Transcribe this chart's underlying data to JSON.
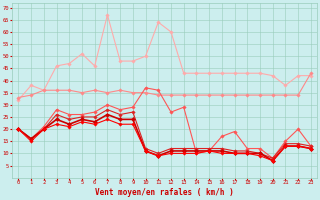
{
  "x": [
    0,
    1,
    2,
    3,
    4,
    5,
    6,
    7,
    8,
    9,
    10,
    11,
    12,
    13,
    14,
    15,
    16,
    17,
    18,
    19,
    20,
    21,
    22,
    23
  ],
  "series": [
    {
      "color": "#ffaaaa",
      "linewidth": 0.8,
      "marker": "D",
      "markersize": 1.8,
      "values": [
        32,
        38,
        36,
        46,
        47,
        51,
        46,
        67,
        48,
        48,
        50,
        64,
        60,
        43,
        43,
        43,
        43,
        43,
        43,
        43,
        42,
        38,
        42,
        42
      ]
    },
    {
      "color": "#ff8888",
      "linewidth": 0.8,
      "marker": "D",
      "markersize": 1.8,
      "values": [
        33,
        34,
        36,
        36,
        36,
        35,
        36,
        35,
        36,
        35,
        35,
        34,
        34,
        34,
        34,
        34,
        34,
        34,
        34,
        34,
        34,
        34,
        34,
        43
      ]
    },
    {
      "color": "#ff5555",
      "linewidth": 0.8,
      "marker": "D",
      "markersize": 1.8,
      "values": [
        20,
        16,
        21,
        28,
        26,
        26,
        27,
        30,
        28,
        29,
        37,
        36,
        27,
        29,
        10,
        11,
        17,
        19,
        12,
        12,
        8,
        15,
        20,
        13
      ]
    },
    {
      "color": "#dd2222",
      "linewidth": 0.8,
      "marker": "D",
      "markersize": 1.8,
      "values": [
        20,
        16,
        20,
        26,
        24,
        25,
        25,
        28,
        26,
        27,
        12,
        10,
        12,
        12,
        12,
        12,
        12,
        11,
        11,
        10,
        8,
        14,
        14,
        13
      ]
    },
    {
      "color": "#cc0000",
      "linewidth": 1.2,
      "marker": "D",
      "markersize": 2.2,
      "values": [
        20,
        16,
        20,
        24,
        22,
        24,
        23,
        26,
        24,
        24,
        11,
        9,
        11,
        11,
        11,
        11,
        11,
        10,
        10,
        10,
        7,
        13,
        13,
        12
      ]
    },
    {
      "color": "#ff0000",
      "linewidth": 0.8,
      "marker": "D",
      "markersize": 1.8,
      "values": [
        20,
        15,
        20,
        22,
        21,
        23,
        22,
        24,
        22,
        22,
        11,
        9,
        10,
        10,
        10,
        11,
        10,
        10,
        10,
        9,
        7,
        13,
        13,
        12
      ]
    }
  ],
  "xlabel": "Vent moyen/en rafales ( km/h )",
  "yticks": [
    5,
    10,
    15,
    20,
    25,
    30,
    35,
    40,
    45,
    50,
    55,
    60,
    65,
    70
  ],
  "xticks": [
    0,
    1,
    2,
    3,
    4,
    5,
    6,
    7,
    8,
    9,
    10,
    11,
    12,
    13,
    14,
    15,
    16,
    17,
    18,
    19,
    20,
    21,
    22,
    23
  ],
  "bg_color": "#cceeee",
  "grid_color": "#99ccbb",
  "tick_color": "#cc0000",
  "label_color": "#cc0000"
}
